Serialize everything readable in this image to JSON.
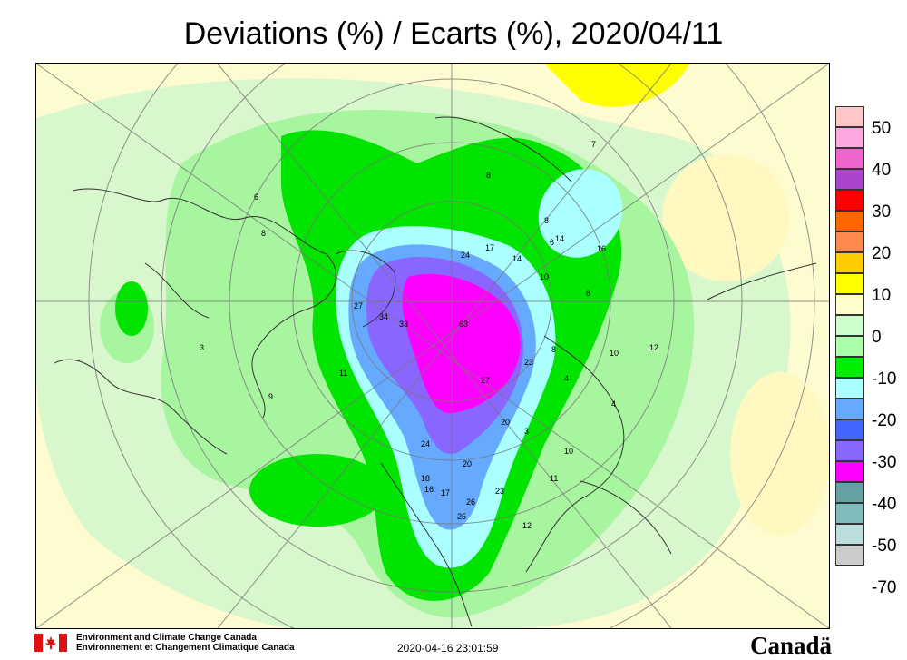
{
  "title": "Deviations (%) / Ecarts (%), 2020/04/11",
  "legend": {
    "items": [
      {
        "label": "50",
        "color": "#ffc8c8"
      },
      {
        "label": "40",
        "color": "#ee66cc"
      },
      {
        "label": "30",
        "color": "#ff0000"
      },
      {
        "label": "20",
        "color": "#ff8a50"
      },
      {
        "label": "10",
        "color": "#ffff00"
      },
      {
        "label": "0",
        "color": "#ffffcc"
      },
      {
        "label": "-10",
        "color": "#aaffaa"
      },
      {
        "label": "-20",
        "color": "#00ee00"
      },
      {
        "label": "-30",
        "color": "#66aaff"
      },
      {
        "label": "-40",
        "color": "#8866ff"
      },
      {
        "label": "-50",
        "color": "#66a0a0"
      },
      {
        "label": "-70",
        "color": "#bbdddd"
      }
    ],
    "extra_colors": [
      "#ffa8e0",
      "#aa44cc",
      "#ff6600",
      "#ffcc00",
      "#ccffcc",
      "#66ff66",
      "#aaffff",
      "#4466ff",
      "#ff00ff",
      "#80bbbb",
      "#cccccc"
    ]
  },
  "stations": [
    "27",
    "34",
    "33",
    "63",
    "24",
    "17",
    "14",
    "10",
    "8",
    "6",
    "16",
    "14",
    "7",
    "8",
    "8",
    "10",
    "12",
    "4",
    "4",
    "23",
    "27",
    "11",
    "20",
    "3",
    "24",
    "20",
    "18",
    "16",
    "17",
    "26",
    "23",
    "25",
    "12",
    "10",
    "11",
    "9",
    "3",
    "8",
    "6",
    "8"
  ],
  "footer": {
    "org_en": "Environment and Climate Change Canada",
    "org_fr": "Environnement et Changement Climatique Canada",
    "timestamp": "2020-04-16 23:01:59",
    "wordmark": "Canadä"
  }
}
